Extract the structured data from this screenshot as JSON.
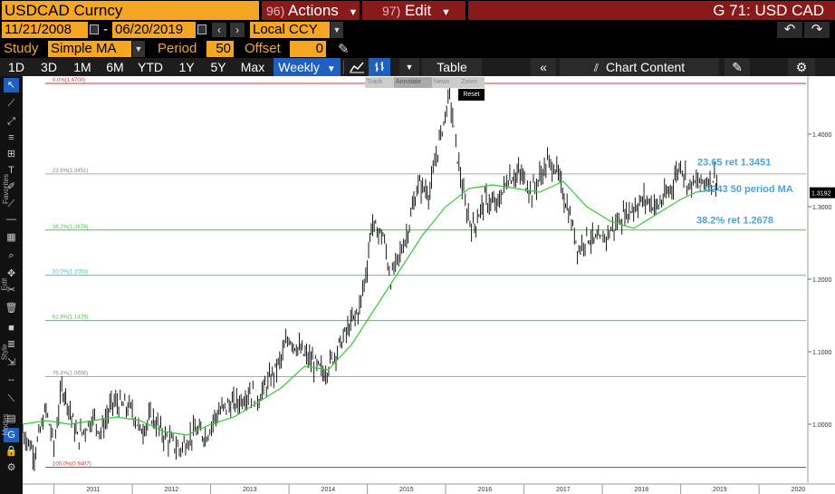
{
  "header": {
    "ticker": "USDCAD Curncy",
    "actions_num": "96)",
    "actions_label": "Actions",
    "edit_num": "97)",
    "edit_label": "Edit",
    "graph_title": "G 71: USD CAD"
  },
  "dates": {
    "start": "11/21/2008",
    "separator": "-",
    "end": "06/20/2019",
    "currency": "Local CCY"
  },
  "study": {
    "label": "Study",
    "value": "Simple MA",
    "period_label": "Period",
    "period": "50",
    "offset_label": "Offset",
    "offset": "0"
  },
  "toolbar": {
    "ranges": [
      "1D",
      "3D",
      "1M",
      "6M",
      "YTD",
      "1Y",
      "5Y",
      "Max"
    ],
    "frequency": "Weekly",
    "table_label": "Table",
    "chart_content_label": "Chart Content"
  },
  "float_tools": {
    "track": "Track",
    "annotate": "Annotate",
    "news": "News",
    "zoom": "Zoom",
    "reset": "Reset"
  },
  "left_labels": {
    "favorites": "Favorites",
    "edit": "Edit",
    "style": "Style",
    "modes": "Modes"
  },
  "colors": {
    "amber": "#f5a623",
    "bloomberg_red": "#8a1a1a",
    "selected_blue": "#1f5fbf",
    "price": "#000000",
    "ma": "#33cc33",
    "fib_red": "#e03030",
    "fib_grey": "#aaaaaa",
    "fib_green": "#44cc44",
    "fib_cyan": "#33cccc",
    "annotation_blue": "#4aa3df"
  },
  "chart_data": {
    "type": "line",
    "x_ticks": [
      "2011",
      "2012",
      "2013",
      "2014",
      "2015",
      "2016",
      "2017",
      "2018",
      "2019",
      "2020"
    ],
    "y_ticks": [
      "1.4000",
      "1.3000",
      "1.2000",
      "1.1000",
      "1.0000"
    ],
    "ylim": [
      0.92,
      1.48
    ],
    "last_price_label": "1.3192",
    "last_price": 1.3192,
    "fib_levels": [
      {
        "label": "0.0%(1.4700)",
        "value": 1.47,
        "color": "#e03030"
      },
      {
        "label": "23.6%(1.3451)",
        "value": 1.3451,
        "color": "#aaaaaa"
      },
      {
        "label": "38.2%(1.2678)",
        "value": 1.2678,
        "color": "#44cc44"
      },
      {
        "label": "50.0%(1.2054)",
        "value": 1.2054,
        "color": "#33cccc"
      },
      {
        "label": "61.8%(1.1429)",
        "value": 1.1429,
        "color": "#44cc44"
      },
      {
        "label": "76.4%(1.0656)",
        "value": 1.0656,
        "color": "#aaaaaa"
      },
      {
        "label": "100.0%(0.9407)",
        "value": 0.9407,
        "color": "#e03030"
      }
    ],
    "annotations": [
      {
        "text": "23.65 ret 1.3451",
        "value": 1.3451
      },
      {
        "text": "1.3243 50 period MA",
        "value": 1.3243
      },
      {
        "text": "38.2% ret 1.2678",
        "value": 1.2678
      }
    ],
    "price_series": {
      "name": "",
      "points": [
        [
          2010.6,
          0.99
        ],
        [
          2010.75,
          0.96
        ],
        [
          2010.9,
          1.02
        ],
        [
          2011.0,
          0.97
        ],
        [
          2011.1,
          1.05
        ],
        [
          2011.15,
          1.04
        ],
        [
          2011.3,
          0.98
        ],
        [
          2011.5,
          1.01
        ],
        [
          2011.6,
          0.99
        ],
        [
          2011.75,
          1.03
        ],
        [
          2012.0,
          1.02
        ],
        [
          2012.1,
          0.99
        ],
        [
          2012.25,
          1.01
        ],
        [
          2012.4,
          0.985
        ],
        [
          2012.6,
          0.965
        ],
        [
          2012.8,
          0.99
        ],
        [
          2012.95,
          0.985
        ],
        [
          2013.05,
          1.01
        ],
        [
          2013.2,
          1.025
        ],
        [
          2013.35,
          1.03
        ],
        [
          2013.5,
          1.045
        ],
        [
          2013.6,
          1.035
        ],
        [
          2013.75,
          1.06
        ],
        [
          2013.9,
          1.09
        ],
        [
          2014.0,
          1.12
        ],
        [
          2014.15,
          1.1
        ],
        [
          2014.3,
          1.085
        ],
        [
          2014.45,
          1.07
        ],
        [
          2014.6,
          1.1
        ],
        [
          2014.75,
          1.13
        ],
        [
          2014.9,
          1.16
        ],
        [
          2015.0,
          1.22
        ],
        [
          2015.05,
          1.275
        ],
        [
          2015.2,
          1.26
        ],
        [
          2015.3,
          1.2
        ],
        [
          2015.5,
          1.26
        ],
        [
          2015.65,
          1.33
        ],
        [
          2015.8,
          1.32
        ],
        [
          2015.9,
          1.38
        ],
        [
          2016.05,
          1.455
        ],
        [
          2016.15,
          1.37
        ],
        [
          2016.25,
          1.3
        ],
        [
          2016.35,
          1.27
        ],
        [
          2016.5,
          1.31
        ],
        [
          2016.65,
          1.3
        ],
        [
          2016.8,
          1.34
        ],
        [
          2016.95,
          1.345
        ],
        [
          2017.1,
          1.32
        ],
        [
          2017.3,
          1.36
        ],
        [
          2017.4,
          1.355
        ],
        [
          2017.55,
          1.3
        ],
        [
          2017.7,
          1.24
        ],
        [
          2017.8,
          1.26
        ],
        [
          2017.95,
          1.25
        ],
        [
          2018.05,
          1.26
        ],
        [
          2018.25,
          1.285
        ],
        [
          2018.4,
          1.3
        ],
        [
          2018.55,
          1.31
        ],
        [
          2018.7,
          1.3
        ],
        [
          2018.85,
          1.32
        ],
        [
          2019.0,
          1.36
        ],
        [
          2019.1,
          1.33
        ],
        [
          2019.3,
          1.335
        ],
        [
          2019.45,
          1.34
        ],
        [
          2019.47,
          1.32
        ]
      ]
    },
    "ma_series": {
      "name": "",
      "points": [
        [
          2010.6,
          1.0
        ],
        [
          2010.9,
          1.005
        ],
        [
          2011.2,
          1.0
        ],
        [
          2011.5,
          1.005
        ],
        [
          2011.8,
          1.01
        ],
        [
          2012.1,
          1.005
        ],
        [
          2012.4,
          0.99
        ],
        [
          2012.7,
          0.985
        ],
        [
          2013.0,
          1.0
        ],
        [
          2013.3,
          1.01
        ],
        [
          2013.6,
          1.03
        ],
        [
          2013.9,
          1.05
        ],
        [
          2014.2,
          1.08
        ],
        [
          2014.5,
          1.075
        ],
        [
          2014.8,
          1.11
        ],
        [
          2015.1,
          1.16
        ],
        [
          2015.4,
          1.21
        ],
        [
          2015.7,
          1.26
        ],
        [
          2016.0,
          1.3
        ],
        [
          2016.3,
          1.325
        ],
        [
          2016.6,
          1.33
        ],
        [
          2016.9,
          1.325
        ],
        [
          2017.2,
          1.32
        ],
        [
          2017.5,
          1.335
        ],
        [
          2017.8,
          1.3
        ],
        [
          2018.1,
          1.28
        ],
        [
          2018.4,
          1.27
        ],
        [
          2018.7,
          1.29
        ],
        [
          2019.0,
          1.31
        ],
        [
          2019.2,
          1.32
        ],
        [
          2019.45,
          1.3243
        ]
      ]
    }
  }
}
